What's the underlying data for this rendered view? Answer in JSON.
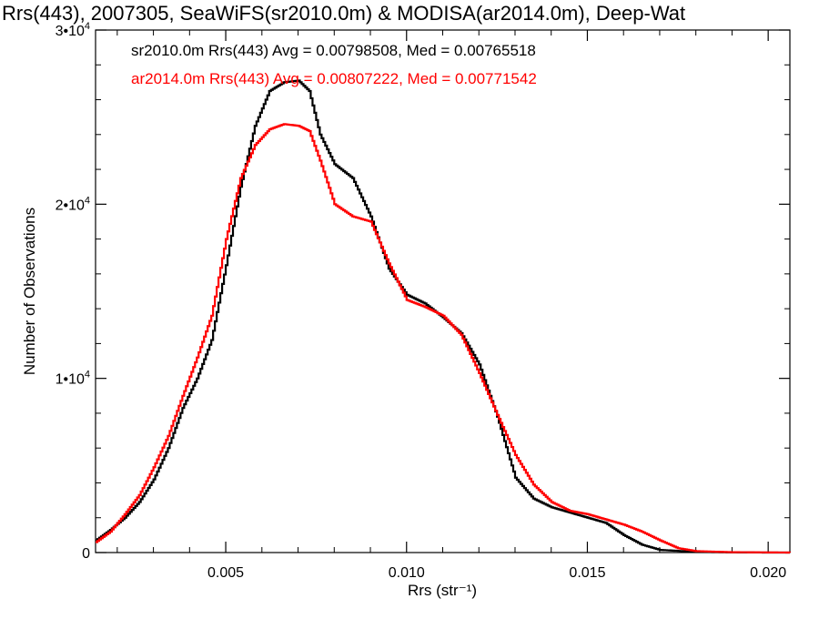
{
  "chart_data": {
    "type": "line",
    "title": "Rrs(443), 2007305, SeaWiFS(sr2010.0m) & MODISA(ar2014.0m), Deep-Wat",
    "xlabel": "Rrs (str⁻¹)",
    "ylabel": "Number of Observations",
    "xlim": [
      0.0014,
      0.0206
    ],
    "ylim": [
      0,
      30000
    ],
    "x_ticks": [
      {
        "value": 0.005,
        "label": "0.005"
      },
      {
        "value": 0.01,
        "label": "0.010"
      },
      {
        "value": 0.015,
        "label": "0.015"
      },
      {
        "value": 0.02,
        "label": "0.020"
      }
    ],
    "y_ticks": [
      {
        "value": 0,
        "label": "0",
        "exp": ""
      },
      {
        "value": 10000,
        "label": "1•10",
        "exp": "4"
      },
      {
        "value": 20000,
        "label": "2•10",
        "exp": "4"
      },
      {
        "value": 30000,
        "label": "3•10",
        "exp": "4"
      }
    ],
    "legend": {
      "placement": "top-left",
      "entries": [
        "sr2010.0m Rrs(443) Avg = 0.00798508, Med = 0.00765518",
        "ar2014.0m Rrs(443) Avg = 0.00807222, Med = 0.00771542"
      ]
    },
    "grid": false,
    "series": [
      {
        "color": "#000000",
        "points": [
          [
            0.0014,
            700
          ],
          [
            0.0018,
            1300
          ],
          [
            0.0022,
            2000
          ],
          [
            0.0026,
            2900
          ],
          [
            0.003,
            4200
          ],
          [
            0.0034,
            6000
          ],
          [
            0.0038,
            8300
          ],
          [
            0.0042,
            10000
          ],
          [
            0.0046,
            12200
          ],
          [
            0.005,
            16500
          ],
          [
            0.0054,
            21000
          ],
          [
            0.0058,
            24500
          ],
          [
            0.0062,
            26500
          ],
          [
            0.0066,
            27000
          ],
          [
            0.007,
            27100
          ],
          [
            0.0073,
            26500
          ],
          [
            0.0076,
            24000
          ],
          [
            0.008,
            22300
          ],
          [
            0.0085,
            21500
          ],
          [
            0.009,
            19300
          ],
          [
            0.0095,
            16300
          ],
          [
            0.01,
            14800
          ],
          [
            0.0105,
            14300
          ],
          [
            0.011,
            13500
          ],
          [
            0.0115,
            12600
          ],
          [
            0.012,
            10800
          ],
          [
            0.0125,
            7800
          ],
          [
            0.013,
            4300
          ],
          [
            0.0135,
            3100
          ],
          [
            0.014,
            2600
          ],
          [
            0.0145,
            2300
          ],
          [
            0.015,
            2000
          ],
          [
            0.0155,
            1700
          ],
          [
            0.016,
            1000
          ],
          [
            0.0165,
            450
          ],
          [
            0.017,
            150
          ],
          [
            0.018,
            40
          ],
          [
            0.019,
            10
          ],
          [
            0.02,
            0
          ],
          [
            0.0206,
            0
          ]
        ]
      },
      {
        "color": "#ff0000",
        "points": [
          [
            0.0014,
            600
          ],
          [
            0.0018,
            1200
          ],
          [
            0.0022,
            2200
          ],
          [
            0.0026,
            3300
          ],
          [
            0.003,
            4900
          ],
          [
            0.0034,
            6700
          ],
          [
            0.0038,
            9000
          ],
          [
            0.0042,
            11200
          ],
          [
            0.0046,
            13600
          ],
          [
            0.005,
            18000
          ],
          [
            0.0054,
            21500
          ],
          [
            0.0058,
            23400
          ],
          [
            0.0062,
            24300
          ],
          [
            0.0066,
            24600
          ],
          [
            0.007,
            24500
          ],
          [
            0.0073,
            24200
          ],
          [
            0.0076,
            22500
          ],
          [
            0.008,
            20000
          ],
          [
            0.0085,
            19300
          ],
          [
            0.009,
            19000
          ],
          [
            0.0095,
            16600
          ],
          [
            0.01,
            14500
          ],
          [
            0.0105,
            14100
          ],
          [
            0.011,
            13600
          ],
          [
            0.0115,
            12500
          ],
          [
            0.012,
            10300
          ],
          [
            0.0125,
            7900
          ],
          [
            0.013,
            5600
          ],
          [
            0.0135,
            3900
          ],
          [
            0.014,
            2900
          ],
          [
            0.0145,
            2400
          ],
          [
            0.015,
            2200
          ],
          [
            0.0155,
            1900
          ],
          [
            0.016,
            1600
          ],
          [
            0.0165,
            1200
          ],
          [
            0.017,
            700
          ],
          [
            0.0175,
            250
          ],
          [
            0.018,
            80
          ],
          [
            0.019,
            20
          ],
          [
            0.0206,
            0
          ]
        ]
      }
    ]
  }
}
